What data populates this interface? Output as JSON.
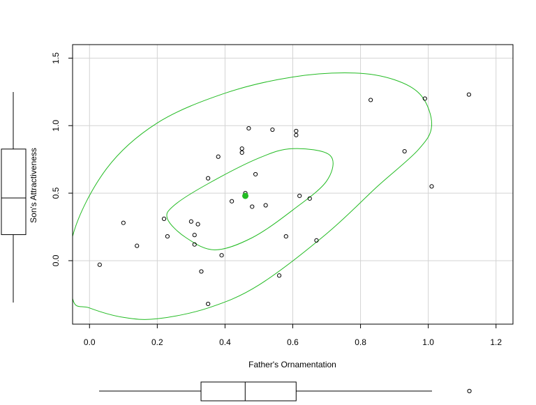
{
  "chart_data": {
    "type": "scatter",
    "title": "",
    "xlabel": "Father's Ornamentation",
    "ylabel": "Son's Attractiveness",
    "xlim": [
      -0.05,
      1.25
    ],
    "ylim": [
      -0.47,
      1.6
    ],
    "xticks": [
      0.0,
      0.2,
      0.4,
      0.6,
      0.8,
      1.0,
      1.2
    ],
    "xtick_labels": [
      "0.0",
      "0.2",
      "0.4",
      "0.6",
      "0.8",
      "1.0",
      "1.2"
    ],
    "yticks": [
      0.0,
      0.5,
      1.0,
      1.5
    ],
    "ytick_labels": [
      "0.0",
      "0.5",
      "1.0",
      "1.5"
    ],
    "grid": true,
    "points": [
      {
        "x": 0.03,
        "y": -0.03
      },
      {
        "x": 0.1,
        "y": 0.28
      },
      {
        "x": 0.14,
        "y": 0.11
      },
      {
        "x": 0.22,
        "y": 0.31
      },
      {
        "x": 0.23,
        "y": 0.18
      },
      {
        "x": 0.3,
        "y": 0.29
      },
      {
        "x": 0.31,
        "y": 0.19
      },
      {
        "x": 0.31,
        "y": 0.12
      },
      {
        "x": 0.32,
        "y": 0.27
      },
      {
        "x": 0.33,
        "y": -0.08
      },
      {
        "x": 0.35,
        "y": 0.61
      },
      {
        "x": 0.35,
        "y": -0.32
      },
      {
        "x": 0.38,
        "y": 0.77
      },
      {
        "x": 0.39,
        "y": 0.04
      },
      {
        "x": 0.42,
        "y": 0.44
      },
      {
        "x": 0.45,
        "y": 0.83
      },
      {
        "x": 0.45,
        "y": 0.8
      },
      {
        "x": 0.46,
        "y": 0.5
      },
      {
        "x": 0.47,
        "y": 0.98
      },
      {
        "x": 0.48,
        "y": 0.4
      },
      {
        "x": 0.49,
        "y": 0.64
      },
      {
        "x": 0.52,
        "y": 0.41
      },
      {
        "x": 0.54,
        "y": 0.97
      },
      {
        "x": 0.56,
        "y": -0.11
      },
      {
        "x": 0.58,
        "y": 0.18
      },
      {
        "x": 0.61,
        "y": 0.96
      },
      {
        "x": 0.61,
        "y": 0.93
      },
      {
        "x": 0.62,
        "y": 0.48
      },
      {
        "x": 0.65,
        "y": 0.46
      },
      {
        "x": 0.67,
        "y": 0.15
      },
      {
        "x": 0.83,
        "y": 1.19
      },
      {
        "x": 0.93,
        "y": 0.81
      },
      {
        "x": 0.99,
        "y": 1.2
      },
      {
        "x": 1.01,
        "y": 0.55
      },
      {
        "x": 1.12,
        "y": 1.23
      }
    ],
    "mean_point": {
      "x": 0.46,
      "y": 0.48
    },
    "ellipses": [
      {
        "level": "inner",
        "outline": [
          [
            0.23,
            0.31
          ],
          [
            0.285,
            0.17
          ],
          [
            0.37,
            0.08
          ],
          [
            0.48,
            0.17
          ],
          [
            0.6,
            0.375
          ],
          [
            0.7,
            0.59
          ],
          [
            0.71,
            0.78
          ],
          [
            0.6,
            0.83
          ],
          [
            0.5,
            0.76
          ],
          [
            0.35,
            0.57
          ],
          [
            0.25,
            0.41
          ]
        ]
      },
      {
        "level": "outer",
        "outline": [
          [
            -0.05,
            -0.28
          ],
          [
            0.0,
            -0.35
          ],
          [
            0.1,
            -0.42
          ],
          [
            0.2,
            -0.43
          ],
          [
            0.35,
            -0.35
          ],
          [
            0.5,
            -0.18
          ],
          [
            0.7,
            0.2
          ],
          [
            0.85,
            0.55
          ],
          [
            0.97,
            0.82
          ],
          [
            1.01,
            1.0
          ],
          [
            0.98,
            1.22
          ],
          [
            0.9,
            1.34
          ],
          [
            0.78,
            1.39
          ],
          [
            0.6,
            1.36
          ],
          [
            0.4,
            1.24
          ],
          [
            0.2,
            1.02
          ],
          [
            0.05,
            0.68
          ],
          [
            -0.05,
            0.18
          ]
        ]
      }
    ],
    "y_boxplot": {
      "min": -0.32,
      "q1": 0.18,
      "median": 0.45,
      "q3": 0.81,
      "max": 1.23
    },
    "x_boxplot": {
      "min": 0.03,
      "q1": 0.33,
      "median": 0.46,
      "q3": 0.61,
      "max": 1.01,
      "outliers": [
        1.12
      ]
    },
    "colors": {
      "points": "#000000",
      "ellipse": "#22bb22",
      "mean_point": "#22bb22",
      "grid": "#d3d3d3",
      "axes": "#000000"
    }
  }
}
